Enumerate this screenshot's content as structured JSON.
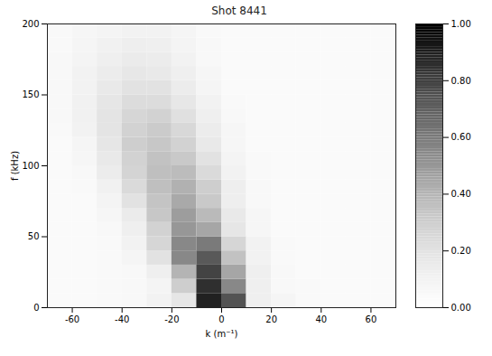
{
  "chart_data": {
    "type": "heatmap",
    "title": "Shot 8441",
    "x_label": "k (m⁻¹)",
    "y_label": "f (kHz)",
    "xlim": [
      -70,
      70
    ],
    "ylim": [
      0,
      200
    ],
    "xticks": [
      -60,
      -40,
      -20,
      0,
      20,
      40,
      60
    ],
    "yticks": [
      0,
      50,
      100,
      150,
      200
    ],
    "color": "greys",
    "x_bins": [
      -70,
      -60,
      -50,
      -40,
      -30,
      -20,
      -10,
      0,
      10,
      20,
      30,
      40,
      50,
      60,
      70
    ],
    "y_bins": [
      0,
      10,
      20,
      30,
      40,
      50,
      60,
      70,
      80,
      90,
      100,
      110,
      120,
      130,
      140,
      150,
      160,
      170,
      180,
      190,
      200
    ],
    "cells": [
      [
        0.04,
        0.04,
        0.05,
        0.06,
        0.1,
        0.18,
        0.89,
        0.74,
        0.12,
        0.08,
        0.05,
        0.04,
        0.04,
        0.04
      ],
      [
        0.04,
        0.04,
        0.05,
        0.06,
        0.09,
        0.3,
        0.85,
        0.55,
        0.12,
        0.06,
        0.05,
        0.04,
        0.04,
        0.04
      ],
      [
        0.04,
        0.04,
        0.05,
        0.06,
        0.12,
        0.4,
        0.79,
        0.45,
        0.12,
        0.06,
        0.04,
        0.04,
        0.04,
        0.04
      ],
      [
        0.04,
        0.04,
        0.05,
        0.08,
        0.2,
        0.55,
        0.72,
        0.35,
        0.1,
        0.05,
        0.04,
        0.04,
        0.04,
        0.04
      ],
      [
        0.04,
        0.04,
        0.05,
        0.1,
        0.26,
        0.55,
        0.6,
        0.26,
        0.1,
        0.05,
        0.04,
        0.04,
        0.04,
        0.04
      ],
      [
        0.04,
        0.04,
        0.06,
        0.12,
        0.28,
        0.5,
        0.45,
        0.18,
        0.07,
        0.04,
        0.04,
        0.04,
        0.04,
        0.04
      ],
      [
        0.04,
        0.04,
        0.07,
        0.15,
        0.33,
        0.48,
        0.38,
        0.16,
        0.07,
        0.04,
        0.04,
        0.04,
        0.04,
        0.04
      ],
      [
        0.04,
        0.04,
        0.09,
        0.2,
        0.34,
        0.44,
        0.32,
        0.13,
        0.06,
        0.04,
        0.04,
        0.04,
        0.04,
        0.04
      ],
      [
        0.04,
        0.05,
        0.11,
        0.24,
        0.36,
        0.41,
        0.3,
        0.13,
        0.06,
        0.04,
        0.04,
        0.04,
        0.04,
        0.04
      ],
      [
        0.04,
        0.06,
        0.14,
        0.27,
        0.36,
        0.37,
        0.24,
        0.1,
        0.05,
        0.04,
        0.04,
        0.04,
        0.04,
        0.04
      ],
      [
        0.04,
        0.07,
        0.16,
        0.28,
        0.35,
        0.32,
        0.2,
        0.09,
        0.05,
        0.04,
        0.04,
        0.04,
        0.04,
        0.04
      ],
      [
        0.04,
        0.08,
        0.18,
        0.3,
        0.33,
        0.28,
        0.16,
        0.07,
        0.04,
        0.04,
        0.04,
        0.04,
        0.04,
        0.04
      ],
      [
        0.05,
        0.1,
        0.19,
        0.28,
        0.31,
        0.25,
        0.14,
        0.07,
        0.04,
        0.04,
        0.04,
        0.04,
        0.04,
        0.04
      ],
      [
        0.06,
        0.11,
        0.19,
        0.26,
        0.28,
        0.21,
        0.12,
        0.06,
        0.04,
        0.04,
        0.04,
        0.04,
        0.04,
        0.04
      ],
      [
        0.06,
        0.11,
        0.18,
        0.23,
        0.23,
        0.17,
        0.1,
        0.05,
        0.04,
        0.04,
        0.04,
        0.04,
        0.04,
        0.04
      ],
      [
        0.06,
        0.1,
        0.16,
        0.2,
        0.2,
        0.14,
        0.08,
        0.04,
        0.04,
        0.04,
        0.04,
        0.04,
        0.04,
        0.04
      ],
      [
        0.06,
        0.1,
        0.14,
        0.17,
        0.16,
        0.12,
        0.07,
        0.04,
        0.04,
        0.04,
        0.04,
        0.04,
        0.04,
        0.04
      ],
      [
        0.06,
        0.09,
        0.12,
        0.15,
        0.14,
        0.1,
        0.06,
        0.04,
        0.04,
        0.04,
        0.04,
        0.04,
        0.04,
        0.04
      ],
      [
        0.05,
        0.08,
        0.11,
        0.13,
        0.12,
        0.09,
        0.06,
        0.04,
        0.04,
        0.04,
        0.04,
        0.04,
        0.04,
        0.04
      ],
      [
        0.05,
        0.07,
        0.09,
        0.1,
        0.1,
        0.08,
        0.05,
        0.04,
        0.04,
        0.04,
        0.04,
        0.04,
        0.04,
        0.04
      ]
    ],
    "colorbar_range": [
      0,
      1
    ],
    "colorbar_ticks": [
      {
        "value": 0,
        "label": "0.00"
      },
      {
        "value": 0.2,
        "label": "0.20"
      },
      {
        "value": 0.4,
        "label": "0.40"
      },
      {
        "value": 0.6,
        "label": "0.60"
      },
      {
        "value": 0.8,
        "label": "0.80"
      },
      {
        "value": 1,
        "label": "1.00"
      }
    ]
  }
}
